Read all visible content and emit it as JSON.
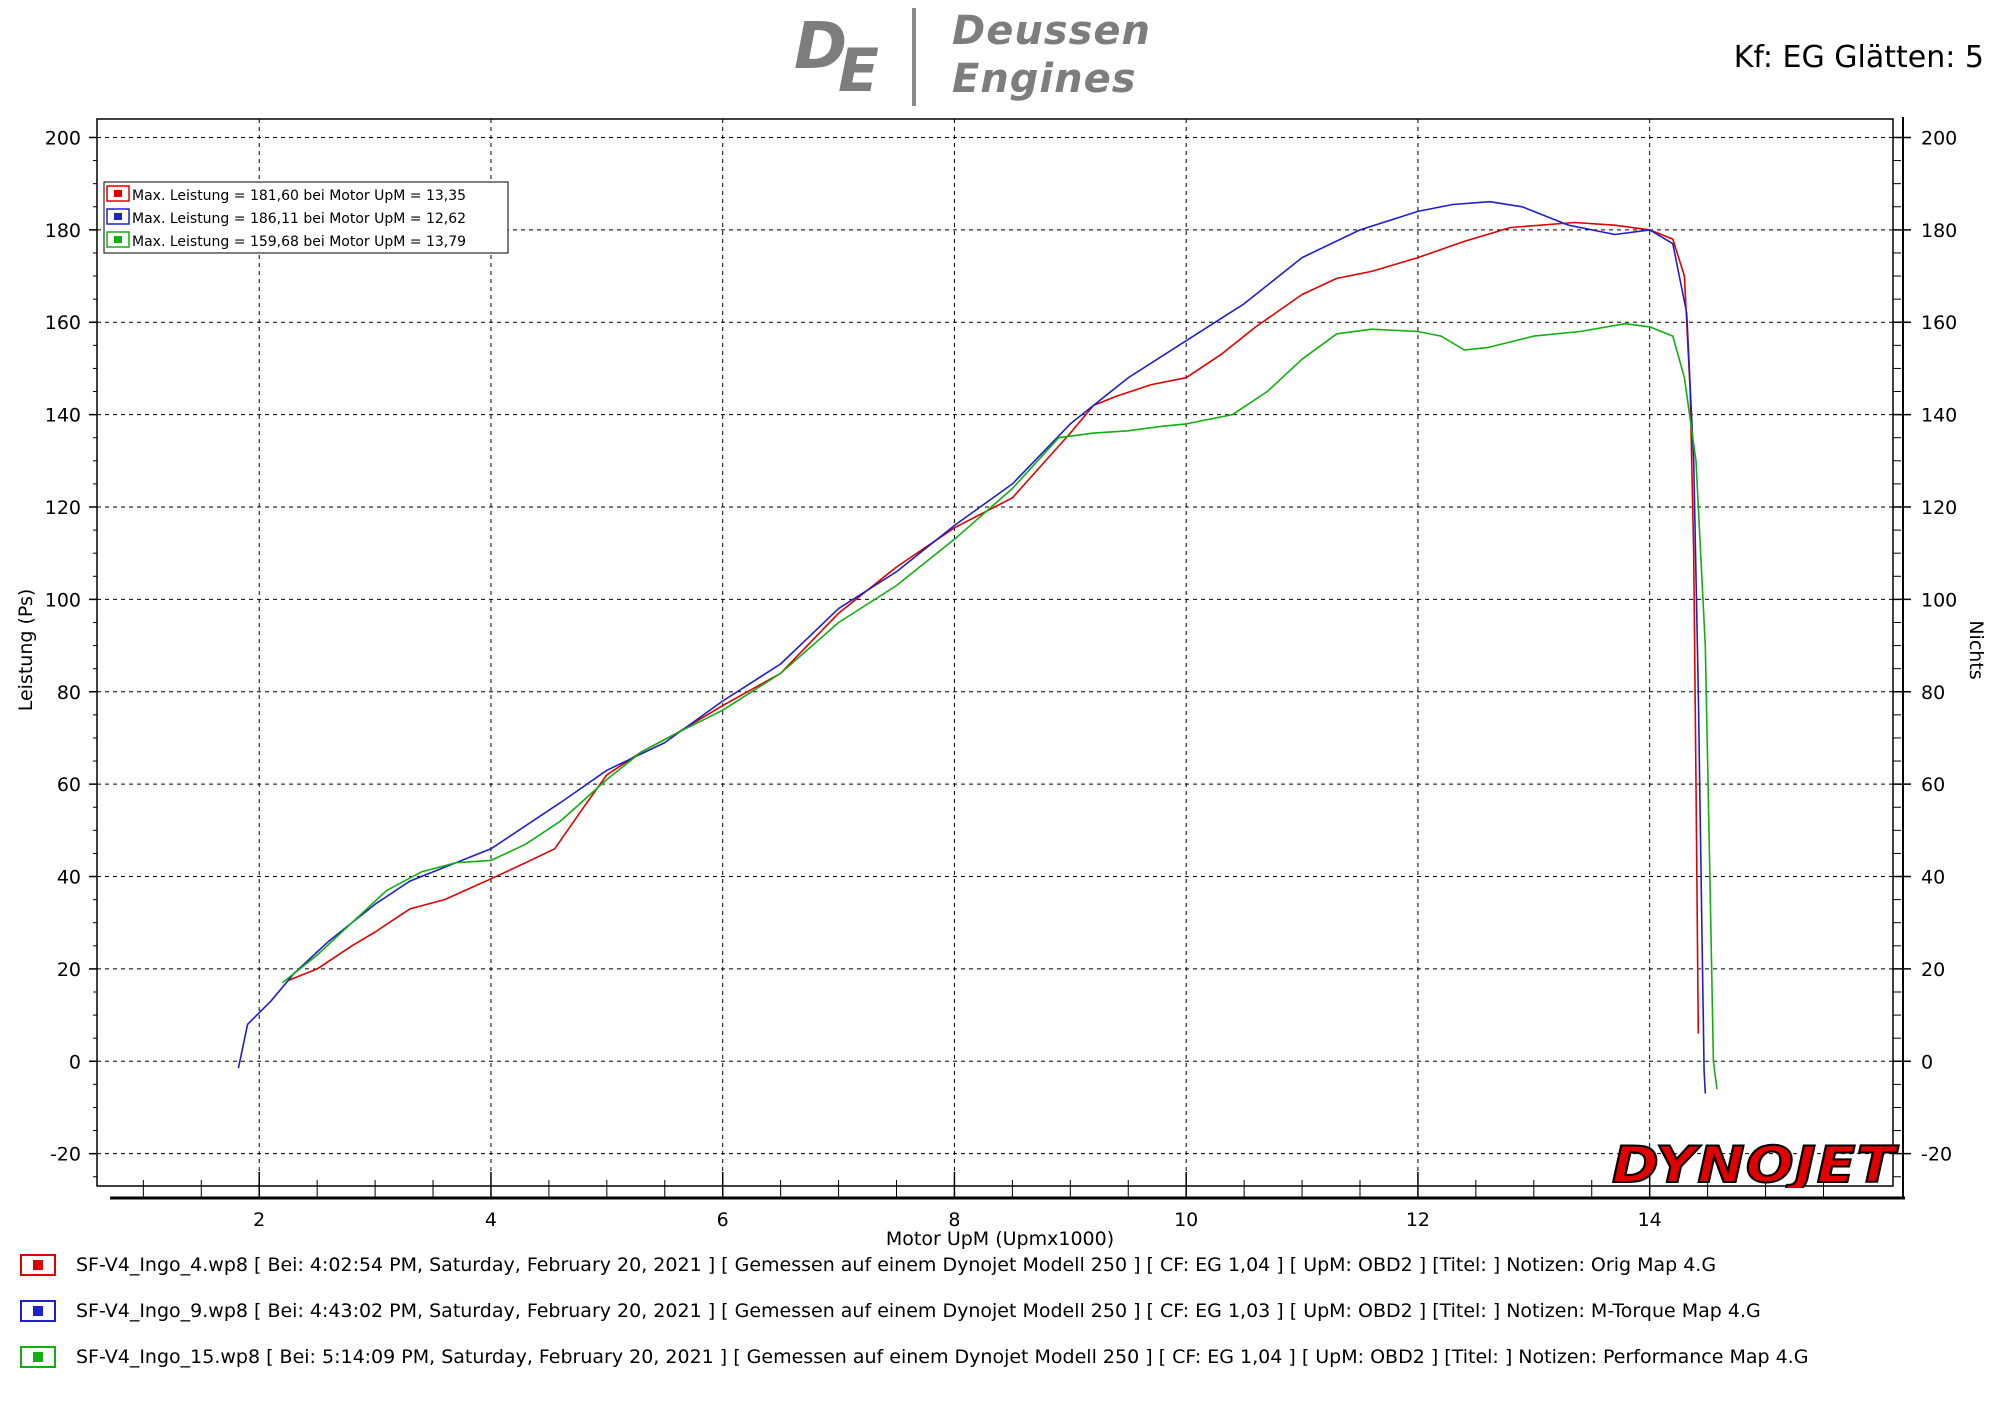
{
  "header": {
    "logo_letter_1": "D",
    "logo_letter_2": "E",
    "logo_line_1": "Deussen",
    "logo_line_2": "Engines",
    "corner_label": "Kf: EG Glätten: 5"
  },
  "brand": "DYNOJET",
  "colors": {
    "red": "#e00000",
    "blue": "#2020c8",
    "green": "#10b010",
    "grid": "#000000"
  },
  "chart_data": {
    "type": "line",
    "xlabel": "Motor UpM (Upmx1000)",
    "ylabel": "Leistung (Ps)",
    "y2label": "Nichts",
    "xlim": [
      0.6,
      16.1
    ],
    "ylim": [
      -27,
      204
    ],
    "x_ticks": [
      2,
      4,
      6,
      8,
      10,
      12,
      14
    ],
    "y_ticks": [
      -20,
      0,
      20,
      40,
      60,
      80,
      100,
      120,
      140,
      160,
      180,
      200
    ],
    "grid": true,
    "legend_position": "top-left",
    "legend": [
      {
        "color": "red",
        "label": "Max. Leistung = 181,60 bei Motor UpM = 13,35"
      },
      {
        "color": "blue",
        "label": "Max. Leistung = 186,11 bei Motor UpM = 12,62"
      },
      {
        "color": "green",
        "label": "Max. Leistung = 159,68 bei Motor UpM = 13,79"
      }
    ],
    "series": [
      {
        "color": "red",
        "points": [
          [
            2.25,
            17.5
          ],
          [
            2.5,
            20
          ],
          [
            2.8,
            25
          ],
          [
            3.0,
            28
          ],
          [
            3.3,
            33
          ],
          [
            3.6,
            35
          ],
          [
            4.0,
            39.5
          ],
          [
            4.3,
            43
          ],
          [
            4.55,
            46
          ],
          [
            4.8,
            55
          ],
          [
            5.0,
            62
          ],
          [
            5.3,
            67
          ],
          [
            5.6,
            71
          ],
          [
            6.0,
            77
          ],
          [
            6.5,
            84
          ],
          [
            7.0,
            97
          ],
          [
            7.5,
            107
          ],
          [
            8.0,
            115.5
          ],
          [
            8.5,
            122
          ],
          [
            9.0,
            136
          ],
          [
            9.2,
            142
          ],
          [
            9.4,
            144
          ],
          [
            9.7,
            146.5
          ],
          [
            10.0,
            148
          ],
          [
            10.3,
            153
          ],
          [
            10.6,
            159
          ],
          [
            11.0,
            166
          ],
          [
            11.3,
            169.5
          ],
          [
            11.6,
            171
          ],
          [
            12.0,
            174
          ],
          [
            12.4,
            177.5
          ],
          [
            12.8,
            180.5
          ],
          [
            13.35,
            181.6
          ],
          [
            13.7,
            181
          ],
          [
            14.0,
            180
          ],
          [
            14.2,
            178
          ],
          [
            14.3,
            170
          ],
          [
            14.35,
            145
          ],
          [
            14.38,
            110
          ],
          [
            14.4,
            60
          ],
          [
            14.42,
            6
          ]
        ]
      },
      {
        "color": "blue",
        "points": [
          [
            1.82,
            -1.5
          ],
          [
            1.9,
            8
          ],
          [
            2.1,
            13
          ],
          [
            2.3,
            19
          ],
          [
            2.6,
            26
          ],
          [
            3.0,
            34
          ],
          [
            3.3,
            39
          ],
          [
            3.6,
            42
          ],
          [
            4.0,
            46
          ],
          [
            4.3,
            51
          ],
          [
            4.6,
            56
          ],
          [
            5.0,
            63
          ],
          [
            5.5,
            69
          ],
          [
            6.0,
            78
          ],
          [
            6.5,
            86
          ],
          [
            7.0,
            98
          ],
          [
            7.5,
            106
          ],
          [
            8.0,
            116
          ],
          [
            8.5,
            125
          ],
          [
            9.0,
            138
          ],
          [
            9.5,
            148
          ],
          [
            10.0,
            156
          ],
          [
            10.5,
            164
          ],
          [
            11.0,
            174
          ],
          [
            11.5,
            180
          ],
          [
            12.0,
            184
          ],
          [
            12.3,
            185.5
          ],
          [
            12.62,
            186.1
          ],
          [
            12.9,
            185
          ],
          [
            13.3,
            181
          ],
          [
            13.7,
            179
          ],
          [
            14.0,
            180
          ],
          [
            14.2,
            177
          ],
          [
            14.32,
            162
          ],
          [
            14.38,
            130
          ],
          [
            14.42,
            80
          ],
          [
            14.45,
            30
          ],
          [
            14.47,
            -2
          ],
          [
            14.48,
            -7
          ]
        ]
      },
      {
        "color": "green",
        "points": [
          [
            2.2,
            17
          ],
          [
            2.5,
            23
          ],
          [
            2.8,
            30
          ],
          [
            3.1,
            37
          ],
          [
            3.4,
            41
          ],
          [
            3.7,
            43
          ],
          [
            4.0,
            43.5
          ],
          [
            4.3,
            47
          ],
          [
            4.6,
            52
          ],
          [
            5.0,
            61
          ],
          [
            5.3,
            67
          ],
          [
            5.6,
            71
          ],
          [
            6.0,
            76
          ],
          [
            6.5,
            84
          ],
          [
            7.0,
            95
          ],
          [
            7.5,
            103
          ],
          [
            8.0,
            113
          ],
          [
            8.5,
            124
          ],
          [
            8.9,
            135
          ],
          [
            9.2,
            136
          ],
          [
            9.5,
            136.5
          ],
          [
            9.8,
            137.5
          ],
          [
            10.0,
            138
          ],
          [
            10.4,
            140
          ],
          [
            10.7,
            145
          ],
          [
            11.0,
            152
          ],
          [
            11.3,
            157.5
          ],
          [
            11.6,
            158.5
          ],
          [
            12.0,
            158
          ],
          [
            12.2,
            157
          ],
          [
            12.4,
            154
          ],
          [
            12.6,
            154.5
          ],
          [
            13.0,
            157
          ],
          [
            13.4,
            158
          ],
          [
            13.79,
            159.68
          ],
          [
            14.0,
            159
          ],
          [
            14.2,
            157
          ],
          [
            14.3,
            148
          ],
          [
            14.4,
            130
          ],
          [
            14.48,
            90
          ],
          [
            14.52,
            40
          ],
          [
            14.55,
            0
          ],
          [
            14.58,
            -6
          ]
        ]
      }
    ]
  },
  "runs": [
    {
      "color": "red",
      "text": "SF-V4_Ingo_4.wp8 [ Bei: 4:02:54 PM, Saturday, February 20, 2021 ] [ Gemessen auf einem Dynojet Modell 250 ] [ CF: EG 1,04 ] [ UpM: OBD2 ] [Titel: ]  Notizen: Orig Map 4.G"
    },
    {
      "color": "blue",
      "text": "SF-V4_Ingo_9.wp8 [ Bei: 4:43:02 PM, Saturday, February 20, 2021 ] [ Gemessen auf einem Dynojet Modell 250 ] [ CF: EG 1,03 ] [ UpM: OBD2 ] [Titel: ]  Notizen: M-Torque Map 4.G"
    },
    {
      "color": "green",
      "text": "SF-V4_Ingo_15.wp8 [ Bei: 5:14:09 PM, Saturday, February 20, 2021 ] [ Gemessen auf einem Dynojet Modell 250 ] [ CF: EG 1,04 ] [ UpM: OBD2 ] [Titel: ]  Notizen: Performance Map 4.G"
    }
  ]
}
